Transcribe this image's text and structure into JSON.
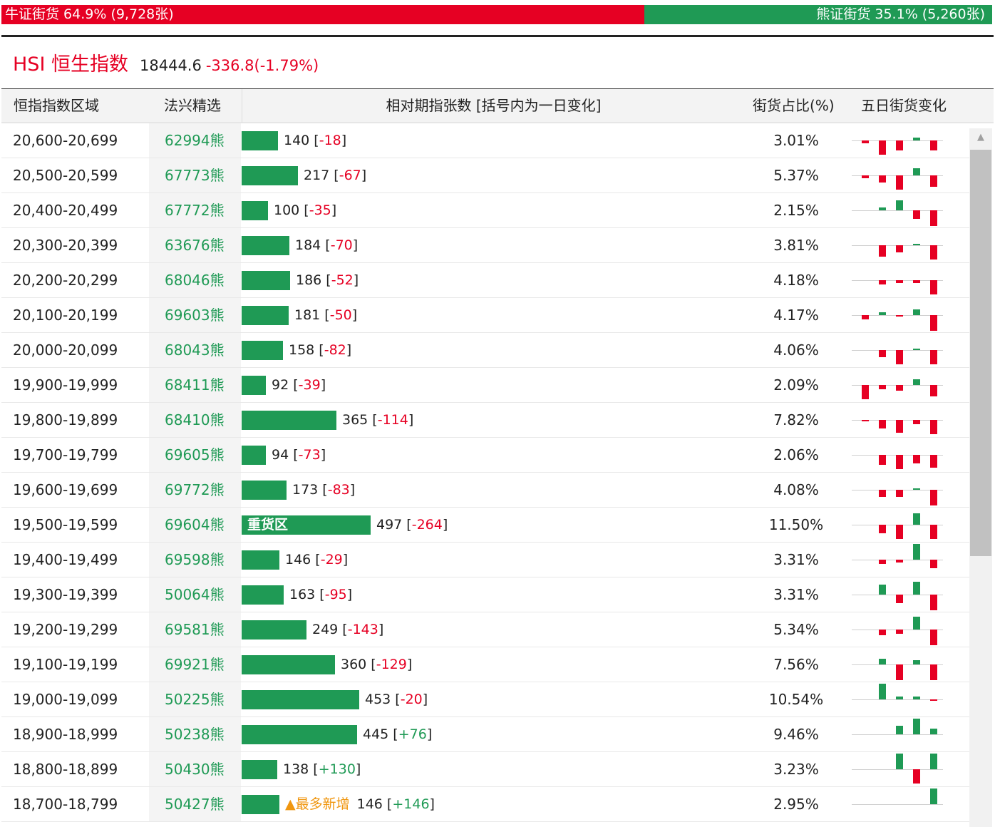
{
  "market_split": {
    "bull_label": "牛证街货 64.9% (9,728张)",
    "bull_share": 0.649,
    "bear_label": "熊证街货 35.1% (5,260张)",
    "bull_color": "#e60023",
    "bear_color": "#1f9a55"
  },
  "index": {
    "name": "HSI 恒生指数",
    "price": "18444.6",
    "change": "-336.8(-1.79%)"
  },
  "table": {
    "headers": {
      "range": "恒指指数区域",
      "pick": "法兴精选",
      "count": "相对期指张数 [括号内为一日变化]",
      "ratio": "街货占比(%)",
      "five_day": "五日街货变化"
    },
    "rows": [
      {
        "range": "20,600-20,699",
        "pick": "62994熊",
        "count": 140,
        "count_text": "140",
        "change": "-18",
        "ratio": "3.01%",
        "five_day": [
          -4,
          -20,
          -14,
          4,
          -14
        ]
      },
      {
        "range": "20,500-20,599",
        "pick": "67773熊",
        "count": 217,
        "count_text": "217",
        "change": "-67",
        "ratio": "5.37%",
        "five_day": [
          -4,
          -10,
          -20,
          10,
          -16
        ]
      },
      {
        "range": "20,400-20,499",
        "pick": "67772熊",
        "count": 100,
        "count_text": "100",
        "change": "-35",
        "ratio": "2.15%",
        "five_day": [
          0,
          4,
          14,
          -12,
          -22
        ]
      },
      {
        "range": "20,300-20,399",
        "pick": "63676熊",
        "count": 184,
        "count_text": "184",
        "change": "-70",
        "ratio": "3.81%",
        "five_day": [
          0,
          -16,
          -10,
          2,
          -20
        ]
      },
      {
        "range": "20,200-20,299",
        "pick": "68046熊",
        "count": 186,
        "count_text": "186",
        "change": "-52",
        "ratio": "4.18%",
        "five_day": [
          0,
          -6,
          -4,
          -4,
          -20
        ]
      },
      {
        "range": "20,100-20,199",
        "pick": "69603熊",
        "count": 181,
        "count_text": "181",
        "change": "-50",
        "ratio": "4.17%",
        "five_day": [
          -6,
          4,
          -2,
          8,
          -22
        ]
      },
      {
        "range": "20,000-20,099",
        "pick": "68043熊",
        "count": 158,
        "count_text": "158",
        "change": "-82",
        "ratio": "4.06%",
        "five_day": [
          0,
          -10,
          -20,
          2,
          -20
        ]
      },
      {
        "range": "19,900-19,999",
        "pick": "68411熊",
        "count": 92,
        "count_text": "92",
        "change": "-39",
        "ratio": "2.09%",
        "five_day": [
          -20,
          -6,
          -8,
          8,
          -16
        ]
      },
      {
        "range": "19,800-19,899",
        "pick": "68410熊",
        "count": 365,
        "count_text": "365",
        "change": "-114",
        "ratio": "7.82%",
        "five_day": [
          -2,
          -12,
          -18,
          -6,
          -20
        ]
      },
      {
        "range": "19,700-19,799",
        "pick": "69605熊",
        "count": 94,
        "count_text": "94",
        "change": "-73",
        "ratio": "2.06%",
        "five_day": [
          0,
          -14,
          -20,
          -12,
          -18
        ]
      },
      {
        "range": "19,600-19,699",
        "pick": "69772熊",
        "count": 173,
        "count_text": "173",
        "change": "-83",
        "ratio": "4.08%",
        "five_day": [
          0,
          -10,
          -10,
          2,
          -22
        ]
      },
      {
        "range": "19,500-19,599",
        "pick": "69604熊",
        "count": 497,
        "count_text": "497",
        "change": "-264",
        "ratio": "11.50%",
        "five_day": [
          0,
          -12,
          -20,
          16,
          -20
        ],
        "tag": "重货区"
      },
      {
        "range": "19,400-19,499",
        "pick": "69598熊",
        "count": 146,
        "count_text": "146",
        "change": "-29",
        "ratio": "3.31%",
        "five_day": [
          0,
          -6,
          -4,
          22,
          -12
        ]
      },
      {
        "range": "19,300-19,399",
        "pick": "50064熊",
        "count": 163,
        "count_text": "163",
        "change": "-95",
        "ratio": "3.31%",
        "five_day": [
          0,
          14,
          -12,
          18,
          -22
        ]
      },
      {
        "range": "19,200-19,299",
        "pick": "69581熊",
        "count": 249,
        "count_text": "249",
        "change": "-143",
        "ratio": "5.34%",
        "five_day": [
          0,
          -8,
          -6,
          18,
          -22
        ]
      },
      {
        "range": "19,100-19,199",
        "pick": "69921熊",
        "count": 360,
        "count_text": "360",
        "change": "-129",
        "ratio": "7.56%",
        "five_day": [
          0,
          8,
          -22,
          6,
          -22
        ]
      },
      {
        "range": "19,000-19,099",
        "pick": "50225熊",
        "count": 453,
        "count_text": "453",
        "change": "-20",
        "ratio": "10.54%",
        "five_day": [
          0,
          22,
          4,
          4,
          -2
        ]
      },
      {
        "range": "18,900-18,999",
        "pick": "50238熊",
        "count": 445,
        "count_text": "445",
        "change": "+76",
        "ratio": "9.46%",
        "five_day": [
          0,
          0,
          12,
          22,
          8
        ]
      },
      {
        "range": "18,800-18,899",
        "pick": "50430熊",
        "count": 138,
        "count_text": "138",
        "change": "+130",
        "ratio": "3.23%",
        "five_day": [
          0,
          0,
          22,
          -20,
          22
        ]
      },
      {
        "range": "18,700-18,799",
        "pick": "50427熊",
        "count": 146,
        "count_text": "146",
        "change": "+146",
        "ratio": "2.95%",
        "five_day": [
          0,
          0,
          0,
          0,
          22
        ],
        "note": "▲最多新增"
      }
    ]
  }
}
